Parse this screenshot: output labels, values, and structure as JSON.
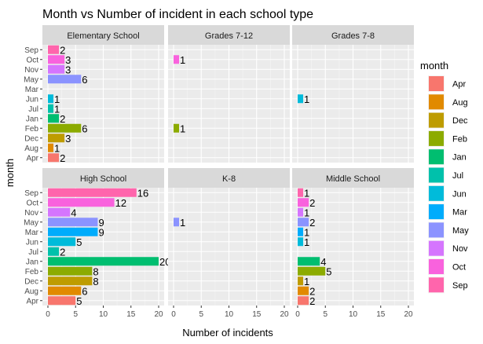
{
  "chart_data": {
    "type": "bar",
    "orientation": "horizontal",
    "faceted": true,
    "title": "Month vs Number of incident in each school type",
    "xlabel": "Number of incidents",
    "ylabel": "month",
    "xlim": [
      0,
      20
    ],
    "xticks": [
      0,
      5,
      10,
      15,
      20
    ],
    "grid": true,
    "legend": {
      "title": "month",
      "position": "right",
      "entries": [
        {
          "label": "Apr",
          "color": "#F8766D"
        },
        {
          "label": "Aug",
          "color": "#E18A00"
        },
        {
          "label": "Dec",
          "color": "#BE9C00"
        },
        {
          "label": "Feb",
          "color": "#8CAB00"
        },
        {
          "label": "Jan",
          "color": "#00BE70"
        },
        {
          "label": "Jul",
          "color": "#00C1AB"
        },
        {
          "label": "Jun",
          "color": "#00BBDA"
        },
        {
          "label": "Mar",
          "color": "#00ACFC"
        },
        {
          "label": "May",
          "color": "#8B93FF"
        },
        {
          "label": "Nov",
          "color": "#D575FE"
        },
        {
          "label": "Oct",
          "color": "#F962DD"
        },
        {
          "label": "Sep",
          "color": "#FF65AC"
        }
      ]
    },
    "panels": [
      {
        "name": "Elementary School",
        "categories": [
          "Sep",
          "Oct",
          "Nov",
          "May",
          "Mar",
          "Jun",
          "Jul",
          "Jan",
          "Feb",
          "Dec",
          "Aug",
          "Apr"
        ],
        "values": {
          "Sep": 2,
          "Oct": 3,
          "Nov": 3,
          "May": 6,
          "Jun": 1,
          "Jul": 1,
          "Jan": 2,
          "Feb": 6,
          "Dec": 3,
          "Aug": 1,
          "Apr": 2
        }
      },
      {
        "name": "Grades 7-12",
        "categories": [
          "Sep",
          "Oct",
          "Nov",
          "May",
          "Mar",
          "Jun",
          "Jul",
          "Jan",
          "Feb",
          "Dec",
          "Aug",
          "Apr"
        ],
        "values": {
          "Oct": 1,
          "Feb": 1
        }
      },
      {
        "name": "Grades 7-8",
        "categories": [
          "Sep",
          "Oct",
          "Nov",
          "May",
          "Mar",
          "Jun",
          "Jul",
          "Jan",
          "Feb",
          "Dec",
          "Aug",
          "Apr"
        ],
        "values": {
          "Jun": 1
        }
      },
      {
        "name": "High School",
        "categories": [
          "Sep",
          "Oct",
          "Nov",
          "May",
          "Mar",
          "Jun",
          "Jul",
          "Jan",
          "Feb",
          "Dec",
          "Aug",
          "Apr"
        ],
        "values": {
          "Sep": 16,
          "Oct": 12,
          "Nov": 4,
          "May": 9,
          "Mar": 9,
          "Jun": 5,
          "Jul": 2,
          "Jan": 20,
          "Feb": 8,
          "Dec": 8,
          "Aug": 6,
          "Apr": 5
        }
      },
      {
        "name": "K-8",
        "categories": [
          "Sep",
          "Oct",
          "Nov",
          "May",
          "Mar",
          "Jun",
          "Jul",
          "Jan",
          "Feb",
          "Dec",
          "Aug",
          "Apr"
        ],
        "values": {
          "May": 1
        }
      },
      {
        "name": "Middle School",
        "categories": [
          "Sep",
          "Oct",
          "Nov",
          "May",
          "Mar",
          "Jun",
          "Jul",
          "Jan",
          "Feb",
          "Dec",
          "Aug",
          "Apr"
        ],
        "values": {
          "Sep": 1,
          "Oct": 2,
          "Nov": 1,
          "May": 2,
          "Mar": 1,
          "Jun": 1,
          "Jan": 4,
          "Feb": 5,
          "Dec": 1,
          "Aug": 2,
          "Apr": 2
        }
      }
    ]
  }
}
